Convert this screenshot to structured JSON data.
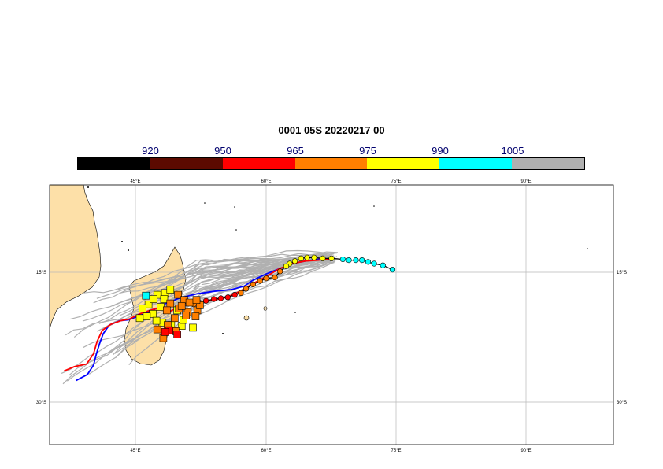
{
  "title": "0001 05S 20220217 00",
  "colorbar": {
    "colors": [
      "#000000",
      "#5c0a00",
      "#ff0000",
      "#ff7f00",
      "#ffff00",
      "#00ffff",
      "#b0b0b0"
    ],
    "labels": [
      "920",
      "950",
      "965",
      "975",
      "990",
      "1005"
    ]
  },
  "axes": {
    "lon_ticks": [
      "45°E",
      "60°E",
      "75°E",
      "90°E"
    ],
    "lat_ticks": [
      "15°S",
      "30°S"
    ]
  },
  "observed_track": [
    {
      "lon": 74.5,
      "lat": 14.7,
      "c": "cyan"
    },
    {
      "lon": 73.4,
      "lat": 14.2,
      "c": "cyan"
    },
    {
      "lon": 72.4,
      "lat": 14.0,
      "c": "cyan"
    },
    {
      "lon": 71.7,
      "lat": 13.8,
      "c": "cyan"
    },
    {
      "lon": 71.0,
      "lat": 13.6,
      "c": "cyan"
    },
    {
      "lon": 70.3,
      "lat": 13.6,
      "c": "cyan"
    },
    {
      "lon": 69.5,
      "lat": 13.6,
      "c": "cyan"
    },
    {
      "lon": 68.8,
      "lat": 13.5,
      "c": "cyan"
    },
    {
      "lon": 67.5,
      "lat": 13.4,
      "c": "yellow"
    },
    {
      "lon": 66.5,
      "lat": 13.4,
      "c": "yellow"
    },
    {
      "lon": 65.5,
      "lat": 13.3,
      "c": "yellow"
    },
    {
      "lon": 64.7,
      "lat": 13.3,
      "c": "yellow"
    },
    {
      "lon": 64.0,
      "lat": 13.4,
      "c": "yellow"
    },
    {
      "lon": 63.3,
      "lat": 13.7,
      "c": "yellow"
    },
    {
      "lon": 62.7,
      "lat": 14.0,
      "c": "yellow"
    },
    {
      "lon": 62.3,
      "lat": 14.3,
      "c": "yellow"
    },
    {
      "lon": 61.6,
      "lat": 14.9,
      "c": "orange"
    },
    {
      "lon": 61.0,
      "lat": 15.6,
      "c": "orange"
    },
    {
      "lon": 60.0,
      "lat": 15.7,
      "c": "orange"
    },
    {
      "lon": 59.3,
      "lat": 16.0,
      "c": "orange"
    },
    {
      "lon": 58.5,
      "lat": 16.4,
      "c": "orange"
    },
    {
      "lon": 57.7,
      "lat": 16.9,
      "c": "orange"
    },
    {
      "lon": 57.1,
      "lat": 17.4,
      "c": "orange"
    },
    {
      "lon": 56.4,
      "lat": 17.6,
      "c": "red"
    },
    {
      "lon": 55.6,
      "lat": 17.9,
      "c": "red"
    },
    {
      "lon": 54.8,
      "lat": 18.0,
      "c": "red"
    },
    {
      "lon": 54.0,
      "lat": 18.1,
      "c": "red"
    },
    {
      "lon": 53.1,
      "lat": 18.3,
      "c": "red"
    },
    {
      "lon": 52.3,
      "lat": 18.5,
      "c": "orange"
    },
    {
      "lon": 51.7,
      "lat": 18.7,
      "c": "orange"
    }
  ],
  "ensemble_points": [
    {
      "lon": 46.2,
      "lat": 17.7,
      "c": "cyan"
    },
    {
      "lon": 47.5,
      "lat": 17.6,
      "c": "yellow"
    },
    {
      "lon": 48.4,
      "lat": 17.4,
      "c": "yellow"
    },
    {
      "lon": 49.0,
      "lat": 17.0,
      "c": "yellow"
    },
    {
      "lon": 46.5,
      "lat": 18.7,
      "c": "yellow"
    },
    {
      "lon": 45.8,
      "lat": 19.2,
      "c": "yellow"
    },
    {
      "lon": 47.0,
      "lat": 19.8,
      "c": "yellow"
    },
    {
      "lon": 47.9,
      "lat": 19.0,
      "c": "yellow"
    },
    {
      "lon": 48.3,
      "lat": 18.1,
      "c": "yellow"
    },
    {
      "lon": 47.1,
      "lat": 18.1,
      "c": "yellow"
    },
    {
      "lon": 45.5,
      "lat": 20.3,
      "c": "yellow"
    },
    {
      "lon": 46.3,
      "lat": 20.1,
      "c": "yellow"
    },
    {
      "lon": 48.1,
      "lat": 20.8,
      "c": "yellow"
    },
    {
      "lon": 49.8,
      "lat": 19.4,
      "c": "yellow"
    },
    {
      "lon": 49.1,
      "lat": 21.1,
      "c": "yellow"
    },
    {
      "lon": 50.3,
      "lat": 21.2,
      "c": "yellow"
    },
    {
      "lon": 51.6,
      "lat": 21.4,
      "c": "yellow"
    },
    {
      "lon": 47.4,
      "lat": 20.6,
      "c": "yellow"
    },
    {
      "lon": 50.5,
      "lat": 20.5,
      "c": "yellow"
    },
    {
      "lon": 49.9,
      "lat": 17.6,
      "c": "orange"
    },
    {
      "lon": 50.6,
      "lat": 18.2,
      "c": "orange"
    },
    {
      "lon": 51.2,
      "lat": 18.5,
      "c": "orange"
    },
    {
      "lon": 49.0,
      "lat": 18.6,
      "c": "orange"
    },
    {
      "lon": 48.6,
      "lat": 19.4,
      "c": "orange"
    },
    {
      "lon": 50.0,
      "lat": 19.2,
      "c": "orange"
    },
    {
      "lon": 51.0,
      "lat": 19.6,
      "c": "orange"
    },
    {
      "lon": 52.1,
      "lat": 19.4,
      "c": "orange"
    },
    {
      "lon": 52.4,
      "lat": 18.8,
      "c": "orange"
    },
    {
      "lon": 51.9,
      "lat": 20.1,
      "c": "orange"
    },
    {
      "lon": 49.5,
      "lat": 20.3,
      "c": "orange"
    },
    {
      "lon": 48.7,
      "lat": 21.1,
      "c": "orange"
    },
    {
      "lon": 47.5,
      "lat": 21.6,
      "c": "orange"
    },
    {
      "lon": 48.2,
      "lat": 22.6,
      "c": "orange"
    },
    {
      "lon": 49.6,
      "lat": 21.8,
      "c": "orange"
    },
    {
      "lon": 50.8,
      "lat": 20.0,
      "c": "orange"
    },
    {
      "lon": 50.3,
      "lat": 18.9,
      "c": "orange"
    },
    {
      "lon": 52.0,
      "lat": 18.2,
      "c": "orange"
    },
    {
      "lon": 49.8,
      "lat": 22.2,
      "c": "red"
    },
    {
      "lon": 48.9,
      "lat": 21.7,
      "c": "red"
    },
    {
      "lon": 48.4,
      "lat": 21.9,
      "c": "red"
    }
  ],
  "mean_track_red": [
    [
      49.0,
      19.5
    ],
    [
      50.0,
      19.0
    ],
    [
      51.0,
      18.7
    ],
    [
      52.5,
      18.4
    ],
    [
      54.0,
      18.2
    ],
    [
      55.5,
      17.9
    ],
    [
      57.0,
      17.2
    ],
    [
      58.5,
      16.3
    ],
    [
      60.0,
      15.5
    ],
    [
      61.5,
      14.6
    ],
    [
      63.0,
      14.0
    ],
    [
      64.5,
      13.7
    ],
    [
      66.0,
      13.6
    ],
    [
      67.5,
      13.4
    ]
  ],
  "mean_track_blue": [
    [
      38.2,
      27.5
    ],
    [
      39.5,
      26.8
    ],
    [
      40.2,
      25.7
    ],
    [
      40.5,
      24.5
    ],
    [
      40.9,
      23.2
    ],
    [
      41.3,
      22.1
    ],
    [
      42.0,
      21.1
    ],
    [
      43.2,
      20.6
    ],
    [
      44.2,
      20.5
    ],
    [
      45.5,
      20.0
    ],
    [
      47.0,
      19.4
    ],
    [
      48.5,
      18.6
    ],
    [
      50.0,
      18.0
    ],
    [
      52.0,
      17.5
    ],
    [
      54.0,
      17.2
    ],
    [
      56.0,
      17.0
    ],
    [
      57.5,
      16.6
    ],
    [
      58.5,
      15.9
    ],
    [
      60.0,
      15.2
    ],
    [
      61.5,
      14.6
    ],
    [
      63.0,
      14.0
    ],
    [
      64.5,
      13.7
    ],
    [
      66.0,
      13.5
    ],
    [
      67.5,
      13.5
    ]
  ],
  "mean_track_red_tail": [
    [
      36.8,
      26.4
    ],
    [
      38.0,
      25.9
    ],
    [
      39.4,
      25.6
    ],
    [
      40.2,
      24.4
    ],
    [
      40.6,
      23.0
    ],
    [
      41.2,
      21.7
    ],
    [
      42.2,
      21.0
    ],
    [
      43.3,
      20.6
    ],
    [
      44.3,
      20.4
    ],
    [
      45.5,
      19.8
    ],
    [
      47.0,
      19.3
    ],
    [
      48.5,
      19.0
    ]
  ]
}
